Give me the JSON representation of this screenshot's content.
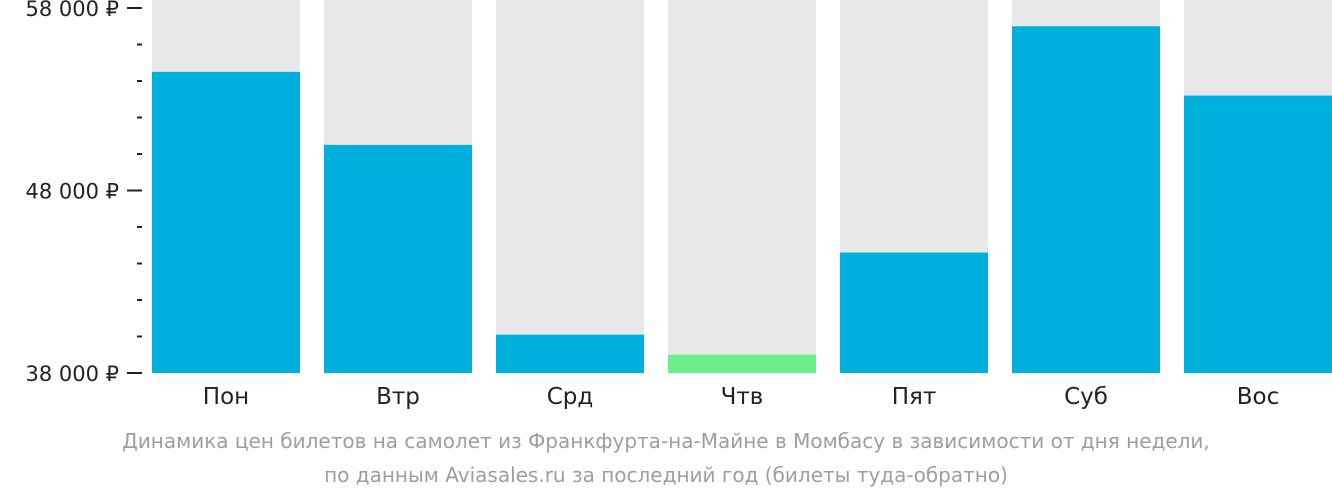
{
  "chart_data": {
    "type": "bar",
    "categories": [
      "Пон",
      "Втр",
      "Срд",
      "Чтв",
      "Пят",
      "Суб",
      "Вос"
    ],
    "values": [
      54500,
      50500,
      40100,
      39000,
      44600,
      57000,
      53200
    ],
    "ylim": [
      38000,
      58000
    ],
    "yticks": [
      {
        "value": 58000,
        "label": "58 000 ₽"
      },
      {
        "value": 48000,
        "label": "48 000 ₽"
      },
      {
        "value": 38000,
        "label": "38 000 ₽"
      }
    ],
    "minor_tick_step": 2000,
    "highlight_category": "Чтв",
    "colors": {
      "bar": "#00b0dc",
      "highlight": "#6bef88",
      "background_bar": "#e8e8e8",
      "axis_text": "#222222",
      "caption_text": "#9e9e9e"
    },
    "grid": false,
    "legend": "none"
  },
  "caption": {
    "line1": "Динамика цен билетов на самолет из Франкфурта-на-Майне в Момбасу в зависимости от дня недели,",
    "line2": "по данным Aviasales.ru за последний год (билеты туда-обратно)"
  }
}
